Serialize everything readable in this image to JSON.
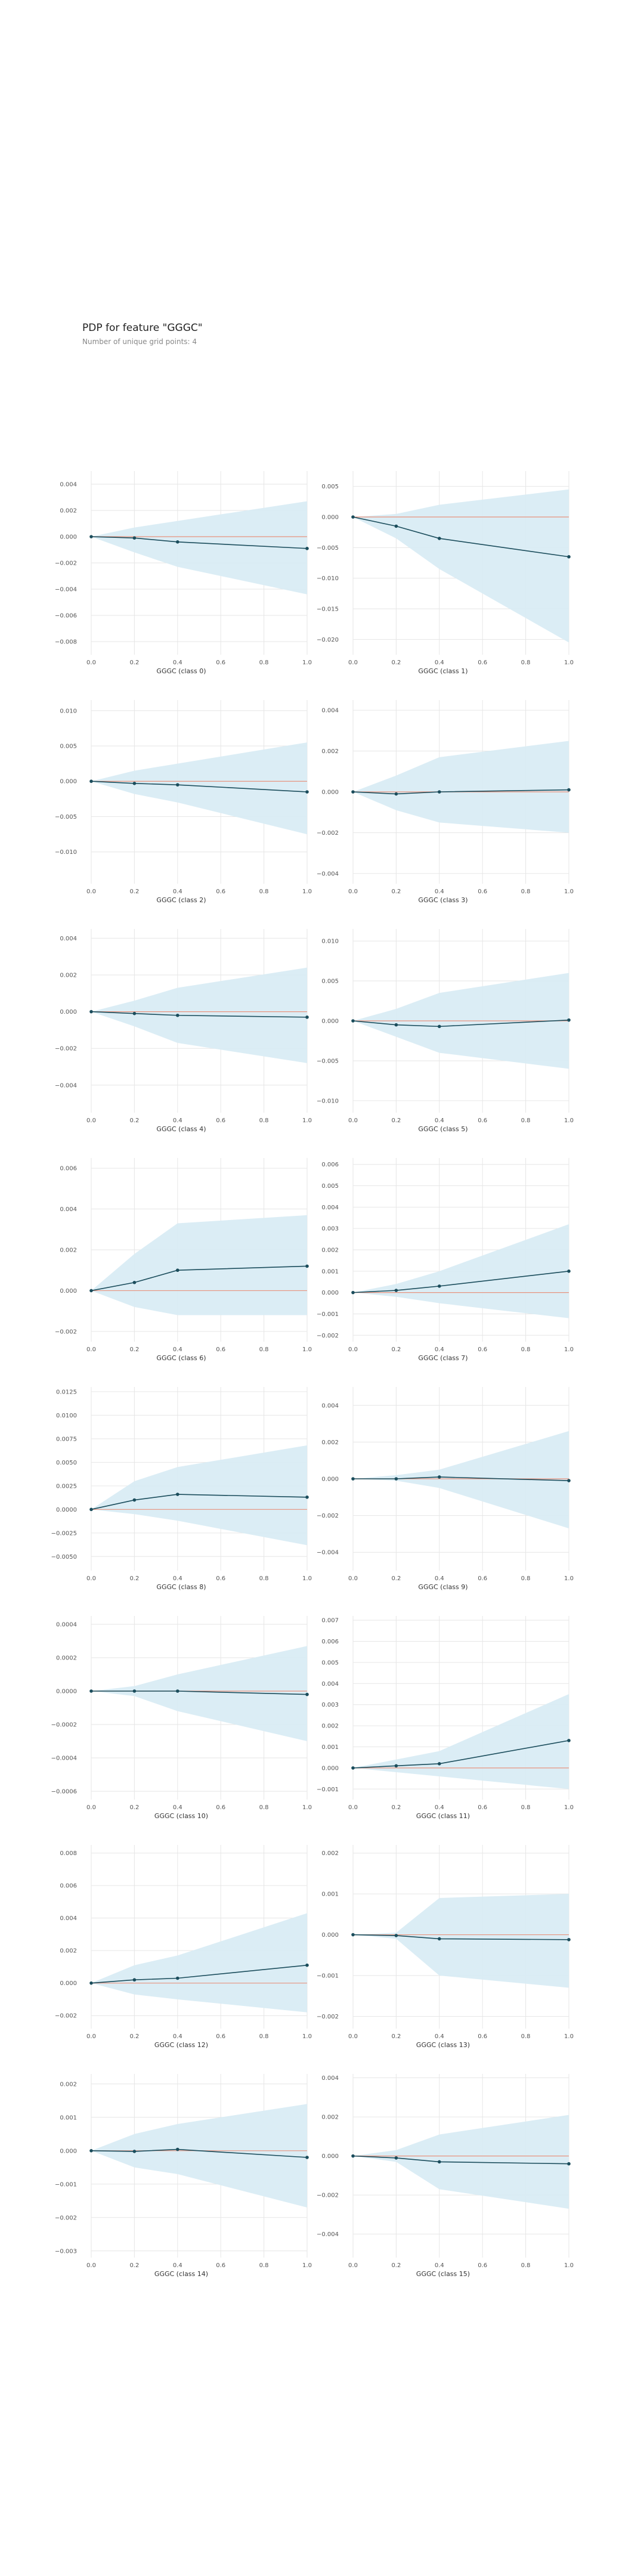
{
  "header": {
    "title": "PDP for feature \"GGGC\"",
    "subtitle": "Number of unique grid points: 4"
  },
  "colors": {
    "band": "#d9ecf4",
    "line": "#1b4d5c",
    "zero_line": "#e8937e",
    "grid": "#e6e6e6",
    "text": "#555555"
  },
  "chart_data": [
    {
      "type": "line",
      "xlabel": "GGGC (class 0)",
      "x": [
        0,
        0.2,
        0.4,
        1.0
      ],
      "y": [
        0,
        -0.0001,
        -0.0004,
        -0.0009
      ],
      "upper": [
        0,
        0.0007,
        0.0012,
        0.0027
      ],
      "lower": [
        0,
        -0.0012,
        -0.0023,
        -0.0044
      ],
      "xlim": [
        0,
        1
      ],
      "ylim": [
        -0.009,
        0.005
      ],
      "yticks": [
        0.004,
        0.002,
        0.0,
        -0.002,
        -0.004,
        -0.006,
        -0.008
      ],
      "ytick_labels": [
        "0.004",
        "0.002",
        "0.000",
        "−0.002",
        "−0.004",
        "−0.006",
        "−0.008"
      ],
      "xtick_labels": [
        "0.0",
        "0.2",
        "0.4",
        "0.6",
        "0.8",
        "1.0"
      ]
    },
    {
      "type": "line",
      "xlabel": "GGGC (class 1)",
      "x": [
        0,
        0.2,
        0.4,
        1.0
      ],
      "y": [
        0,
        -0.0015,
        -0.0035,
        -0.0065
      ],
      "upper": [
        0,
        0.0005,
        0.002,
        0.0045
      ],
      "lower": [
        0,
        -0.0035,
        -0.0085,
        -0.0205
      ],
      "xlim": [
        0,
        1
      ],
      "ylim": [
        -0.0225,
        0.0075
      ],
      "yticks": [
        0.005,
        0.0,
        -0.005,
        -0.01,
        -0.015,
        -0.02
      ],
      "ytick_labels": [
        "0.005",
        "0.000",
        "−0.005",
        "−0.010",
        "−0.015",
        "−0.020"
      ],
      "xtick_labels": [
        "0.0",
        "0.2",
        "0.4",
        "0.6",
        "0.8",
        "1.0"
      ]
    },
    {
      "type": "line",
      "xlabel": "GGGC (class 2)",
      "x": [
        0,
        0.2,
        0.4,
        1.0
      ],
      "y": [
        0,
        -0.0003,
        -0.0005,
        -0.0015
      ],
      "upper": [
        0,
        0.0015,
        0.0025,
        0.0055
      ],
      "lower": [
        0,
        -0.0018,
        -0.003,
        -0.0075
      ],
      "xlim": [
        0,
        1
      ],
      "ylim": [
        -0.0145,
        0.0115
      ],
      "yticks": [
        0.01,
        0.005,
        0.0,
        -0.005,
        -0.01
      ],
      "ytick_labels": [
        "0.010",
        "0.005",
        "0.000",
        "−0.005",
        "−0.010"
      ],
      "xtick_labels": [
        "0.0",
        "0.2",
        "0.4",
        "0.6",
        "0.8",
        "1.0"
      ]
    },
    {
      "type": "line",
      "xlabel": "GGGC (class 3)",
      "x": [
        0,
        0.2,
        0.4,
        1.0
      ],
      "y": [
        0,
        -0.0001,
        0.0,
        0.0001
      ],
      "upper": [
        0,
        0.0008,
        0.0017,
        0.0025
      ],
      "lower": [
        0,
        -0.0009,
        -0.0015,
        -0.002
      ],
      "xlim": [
        0,
        1
      ],
      "ylim": [
        -0.0045,
        0.0045
      ],
      "yticks": [
        0.004,
        0.002,
        0.0,
        -0.002,
        -0.004
      ],
      "ytick_labels": [
        "0.004",
        "0.002",
        "0.000",
        "−0.002",
        "−0.004"
      ],
      "xtick_labels": [
        "0.0",
        "0.2",
        "0.4",
        "0.6",
        "0.8",
        "1.0"
      ]
    },
    {
      "type": "line",
      "xlabel": "GGGC (class 4)",
      "x": [
        0,
        0.2,
        0.4,
        1.0
      ],
      "y": [
        0,
        -0.0001,
        -0.0002,
        -0.0003
      ],
      "upper": [
        0,
        0.0006,
        0.0013,
        0.0024
      ],
      "lower": [
        0,
        -0.0008,
        -0.0017,
        -0.0028
      ],
      "xlim": [
        0,
        1
      ],
      "ylim": [
        -0.0055,
        0.0045
      ],
      "yticks": [
        0.004,
        0.002,
        0.0,
        -0.002,
        -0.004
      ],
      "ytick_labels": [
        "0.004",
        "0.002",
        "0.000",
        "−0.002",
        "−0.004"
      ],
      "xtick_labels": [
        "0.0",
        "0.2",
        "0.4",
        "0.6",
        "0.8",
        "1.0"
      ]
    },
    {
      "type": "line",
      "xlabel": "GGGC (class 5)",
      "x": [
        0,
        0.2,
        0.4,
        1.0
      ],
      "y": [
        0,
        -0.0005,
        -0.0007,
        0.0001
      ],
      "upper": [
        0,
        0.0015,
        0.0035,
        0.006
      ],
      "lower": [
        0,
        -0.002,
        -0.004,
        -0.006
      ],
      "xlim": [
        0,
        1
      ],
      "ylim": [
        -0.0115,
        0.0115
      ],
      "yticks": [
        0.01,
        0.005,
        0.0,
        -0.005,
        -0.01
      ],
      "ytick_labels": [
        "0.010",
        "0.005",
        "0.000",
        "−0.005",
        "−0.010"
      ],
      "xtick_labels": [
        "0.0",
        "0.2",
        "0.4",
        "0.6",
        "0.8",
        "1.0"
      ]
    },
    {
      "type": "line",
      "xlabel": "GGGC (class 6)",
      "x": [
        0,
        0.2,
        0.4,
        1.0
      ],
      "y": [
        0,
        0.0004,
        0.001,
        0.0012
      ],
      "upper": [
        0,
        0.0018,
        0.0033,
        0.0037
      ],
      "lower": [
        0,
        -0.0008,
        -0.0012,
        -0.0012
      ],
      "xlim": [
        0,
        1
      ],
      "ylim": [
        -0.0025,
        0.0065
      ],
      "yticks": [
        0.006,
        0.004,
        0.002,
        0.0,
        -0.002
      ],
      "ytick_labels": [
        "0.006",
        "0.004",
        "0.002",
        "0.000",
        "−0.002"
      ],
      "xtick_labels": [
        "0.0",
        "0.2",
        "0.4",
        "0.6",
        "0.8",
        "1.0"
      ]
    },
    {
      "type": "line",
      "xlabel": "GGGC (class 7)",
      "x": [
        0,
        0.2,
        0.4,
        1.0
      ],
      "y": [
        0,
        0.0001,
        0.0003,
        0.001
      ],
      "upper": [
        0,
        0.0004,
        0.001,
        0.0032
      ],
      "lower": [
        0,
        -0.0002,
        -0.0005,
        -0.0012
      ],
      "xlim": [
        0,
        1
      ],
      "ylim": [
        -0.0023,
        0.0063
      ],
      "yticks": [
        0.006,
        0.005,
        0.004,
        0.003,
        0.002,
        0.001,
        0.0,
        -0.001,
        -0.002
      ],
      "ytick_labels": [
        "0.006",
        "0.005",
        "0.004",
        "0.003",
        "0.002",
        "0.001",
        "0.000",
        "−0.001",
        "−0.002"
      ],
      "xtick_labels": [
        "0.0",
        "0.2",
        "0.4",
        "0.6",
        "0.8",
        "1.0"
      ]
    },
    {
      "type": "line",
      "xlabel": "GGGC (class 8)",
      "x": [
        0,
        0.2,
        0.4,
        1.0
      ],
      "y": [
        0,
        0.001,
        0.0016,
        0.0013
      ],
      "upper": [
        0,
        0.003,
        0.0045,
        0.0068
      ],
      "lower": [
        0,
        -0.0005,
        -0.0012,
        -0.0038
      ],
      "xlim": [
        0,
        1
      ],
      "ylim": [
        -0.0065,
        0.013
      ],
      "yticks": [
        0.0125,
        0.01,
        0.0075,
        0.005,
        0.0025,
        0.0,
        -0.0025,
        -0.005
      ],
      "ytick_labels": [
        "0.0125",
        "0.0100",
        "0.0075",
        "0.0050",
        "0.0025",
        "0.0000",
        "−0.0025",
        "−0.0050"
      ],
      "xtick_labels": [
        "0.0",
        "0.2",
        "0.4",
        "0.6",
        "0.8",
        "1.0"
      ]
    },
    {
      "type": "line",
      "xlabel": "GGGC (class 9)",
      "x": [
        0,
        0.2,
        0.4,
        1.0
      ],
      "y": [
        0,
        0.0,
        0.0001,
        -0.0001
      ],
      "upper": [
        0,
        0.0002,
        0.0005,
        0.0026
      ],
      "lower": [
        0,
        -0.0001,
        -0.0005,
        -0.0027
      ],
      "xlim": [
        0,
        1
      ],
      "ylim": [
        -0.005,
        0.005
      ],
      "yticks": [
        0.004,
        0.002,
        0.0,
        -0.002,
        -0.004
      ],
      "ytick_labels": [
        "0.004",
        "0.002",
        "0.000",
        "−0.002",
        "−0.004"
      ],
      "xtick_labels": [
        "0.0",
        "0.2",
        "0.4",
        "0.6",
        "0.8",
        "1.0"
      ]
    },
    {
      "type": "line",
      "xlabel": "GGGC (class 10)",
      "x": [
        0,
        0.2,
        0.4,
        1.0
      ],
      "y": [
        0,
        0.0,
        0.0,
        -2e-05
      ],
      "upper": [
        0,
        3e-05,
        0.0001,
        0.00027
      ],
      "lower": [
        0,
        -3e-05,
        -0.00012,
        -0.0003
      ],
      "xlim": [
        0,
        1
      ],
      "ylim": [
        -0.00065,
        0.00045
      ],
      "yticks": [
        0.0004,
        0.0002,
        0.0,
        -0.0002,
        -0.0004,
        -0.0006
      ],
      "ytick_labels": [
        "0.0004",
        "0.0002",
        "0.0000",
        "−0.0002",
        "−0.0004",
        "−0.0006"
      ],
      "xtick_labels": [
        "0.0",
        "0.2",
        "0.4",
        "0.6",
        "0.8",
        "1.0"
      ]
    },
    {
      "type": "line",
      "xlabel": "GGGC (class 11)",
      "x": [
        0,
        0.2,
        0.4,
        1.0
      ],
      "y": [
        0,
        0.0001,
        0.0002,
        0.0013
      ],
      "upper": [
        0,
        0.0004,
        0.0008,
        0.0035
      ],
      "lower": [
        0,
        -0.0002,
        -0.0004,
        -0.001
      ],
      "xlim": [
        0,
        1
      ],
      "ylim": [
        -0.0015,
        0.0072
      ],
      "yticks": [
        0.007,
        0.006,
        0.005,
        0.004,
        0.003,
        0.002,
        0.001,
        0.0,
        -0.001
      ],
      "ytick_labels": [
        "0.007",
        "0.006",
        "0.005",
        "0.004",
        "0.003",
        "0.002",
        "0.001",
        "0.000",
        "−0.001"
      ],
      "xtick_labels": [
        "0.0",
        "0.2",
        "0.4",
        "0.6",
        "0.8",
        "1.0"
      ]
    },
    {
      "type": "line",
      "xlabel": "GGGC (class 12)",
      "x": [
        0,
        0.2,
        0.4,
        1.0
      ],
      "y": [
        0,
        0.0002,
        0.0003,
        0.0011
      ],
      "upper": [
        0,
        0.0011,
        0.0017,
        0.0043
      ],
      "lower": [
        0,
        -0.0007,
        -0.001,
        -0.0018
      ],
      "xlim": [
        0,
        1
      ],
      "ylim": [
        -0.0028,
        0.0085
      ],
      "yticks": [
        0.008,
        0.006,
        0.004,
        0.002,
        0.0,
        -0.002
      ],
      "ytick_labels": [
        "0.008",
        "0.006",
        "0.004",
        "0.002",
        "0.000",
        "−0.002"
      ],
      "xtick_labels": [
        "0.0",
        "0.2",
        "0.4",
        "0.6",
        "0.8",
        "1.0"
      ]
    },
    {
      "type": "line",
      "xlabel": "GGGC (class 13)",
      "x": [
        0,
        0.2,
        0.4,
        1.0
      ],
      "y": [
        0,
        -2e-05,
        -0.0001,
        -0.00012
      ],
      "upper": [
        0,
        5e-05,
        0.0009,
        0.001
      ],
      "lower": [
        0,
        -0.0001,
        -0.001,
        -0.0013
      ],
      "xlim": [
        0,
        1
      ],
      "ylim": [
        -0.0023,
        0.0022
      ],
      "yticks": [
        0.002,
        0.001,
        0.0,
        -0.001,
        -0.002
      ],
      "ytick_labels": [
        "0.002",
        "0.001",
        "0.000",
        "−0.001",
        "−0.002"
      ],
      "xtick_labels": [
        "0.0",
        "0.2",
        "0.4",
        "0.6",
        "0.8",
        "1.0"
      ]
    },
    {
      "type": "line",
      "xlabel": "GGGC (class 14)",
      "x": [
        0,
        0.2,
        0.4,
        1.0
      ],
      "y": [
        0,
        -2e-05,
        4e-05,
        -0.0002
      ],
      "upper": [
        0,
        0.0005,
        0.0008,
        0.0014
      ],
      "lower": [
        0,
        -0.0005,
        -0.0007,
        -0.0017
      ],
      "xlim": [
        0,
        1
      ],
      "ylim": [
        -0.0032,
        0.0023
      ],
      "yticks": [
        0.002,
        0.001,
        0.0,
        -0.001,
        -0.002,
        -0.003
      ],
      "ytick_labels": [
        "0.002",
        "0.001",
        "0.000",
        "−0.001",
        "−0.002",
        "−0.003"
      ],
      "xtick_labels": [
        "0.0",
        "0.2",
        "0.4",
        "0.6",
        "0.8",
        "1.0"
      ]
    },
    {
      "type": "line",
      "xlabel": "GGGC (class 15)",
      "x": [
        0,
        0.2,
        0.4,
        1.0
      ],
      "y": [
        0,
        -0.0001,
        -0.0003,
        -0.0004
      ],
      "upper": [
        0,
        0.0003,
        0.0011,
        0.0021
      ],
      "lower": [
        0,
        -0.0003,
        -0.0017,
        -0.0027
      ],
      "xlim": [
        0,
        1
      ],
      "ylim": [
        -0.0052,
        0.0042
      ],
      "yticks": [
        0.004,
        0.002,
        0.0,
        -0.002,
        -0.004
      ],
      "ytick_labels": [
        "0.004",
        "0.002",
        "0.000",
        "−0.002",
        "−0.004"
      ],
      "xtick_labels": [
        "0.0",
        "0.2",
        "0.4",
        "0.6",
        "0.8",
        "1.0"
      ]
    }
  ]
}
